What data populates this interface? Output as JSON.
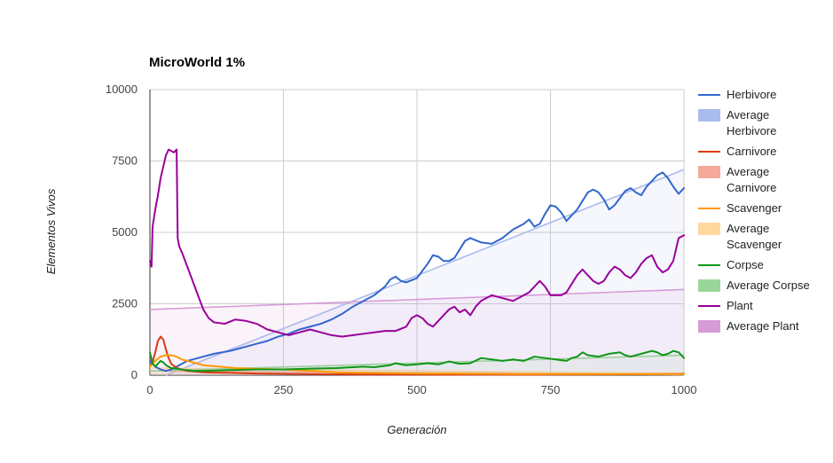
{
  "chart_data": {
    "type": "line",
    "title": "MicroWorld 1%",
    "xlabel": "Generación",
    "ylabel": "Elementos Vivos",
    "xlim": [
      0,
      1000
    ],
    "ylim": [
      0,
      10000
    ],
    "x_ticks": [
      0,
      250,
      500,
      750,
      1000
    ],
    "y_ticks": [
      0,
      2500,
      5000,
      7500,
      10000
    ],
    "x_tick_labels": [
      "0",
      "250",
      "500",
      "750",
      "1000"
    ],
    "y_tick_labels": [
      "0",
      "2500",
      "5000",
      "7500",
      "10000"
    ],
    "grid": true,
    "legend_position": "right",
    "series": [
      {
        "name": "Herbivore",
        "legend_label": [
          "Herbivore"
        ],
        "style": "line",
        "color": "#3366cc",
        "points": [
          [
            0,
            500
          ],
          [
            10,
            300
          ],
          [
            20,
            200
          ],
          [
            30,
            150
          ],
          [
            40,
            200
          ],
          [
            50,
            300
          ],
          [
            60,
            400
          ],
          [
            70,
            500
          ],
          [
            80,
            550
          ],
          [
            100,
            650
          ],
          [
            120,
            750
          ],
          [
            150,
            850
          ],
          [
            180,
            1000
          ],
          [
            200,
            1100
          ],
          [
            220,
            1200
          ],
          [
            240,
            1350
          ],
          [
            260,
            1450
          ],
          [
            280,
            1600
          ],
          [
            300,
            1700
          ],
          [
            320,
            1800
          ],
          [
            340,
            1950
          ],
          [
            360,
            2150
          ],
          [
            380,
            2400
          ],
          [
            400,
            2600
          ],
          [
            420,
            2800
          ],
          [
            440,
            3100
          ],
          [
            450,
            3350
          ],
          [
            460,
            3450
          ],
          [
            470,
            3300
          ],
          [
            480,
            3250
          ],
          [
            500,
            3400
          ],
          [
            520,
            3900
          ],
          [
            530,
            4200
          ],
          [
            540,
            4150
          ],
          [
            550,
            4000
          ],
          [
            560,
            4000
          ],
          [
            570,
            4100
          ],
          [
            580,
            4400
          ],
          [
            590,
            4700
          ],
          [
            600,
            4800
          ],
          [
            620,
            4650
          ],
          [
            640,
            4600
          ],
          [
            660,
            4800
          ],
          [
            680,
            5100
          ],
          [
            700,
            5300
          ],
          [
            710,
            5450
          ],
          [
            720,
            5200
          ],
          [
            730,
            5300
          ],
          [
            740,
            5650
          ],
          [
            750,
            5950
          ],
          [
            760,
            5900
          ],
          [
            770,
            5700
          ],
          [
            780,
            5400
          ],
          [
            800,
            5800
          ],
          [
            810,
            6100
          ],
          [
            820,
            6400
          ],
          [
            830,
            6500
          ],
          [
            840,
            6400
          ],
          [
            850,
            6150
          ],
          [
            860,
            5800
          ],
          [
            870,
            5950
          ],
          [
            880,
            6200
          ],
          [
            890,
            6450
          ],
          [
            900,
            6550
          ],
          [
            910,
            6400
          ],
          [
            920,
            6300
          ],
          [
            930,
            6600
          ],
          [
            940,
            6800
          ],
          [
            950,
            7000
          ],
          [
            960,
            7100
          ],
          [
            970,
            6900
          ],
          [
            980,
            6600
          ],
          [
            990,
            6350
          ],
          [
            1000,
            6550
          ]
        ]
      },
      {
        "name": "Average Herbivore",
        "legend_label": [
          "Average",
          "Herbivore"
        ],
        "style": "area",
        "color": "#aabbee",
        "points": [
          [
            30,
            0
          ],
          [
            1000,
            7200
          ]
        ]
      },
      {
        "name": "Carnivore",
        "legend_label": [
          "Carnivore"
        ],
        "style": "line",
        "color": "#dc3912",
        "points": [
          [
            0,
            300
          ],
          [
            5,
            450
          ],
          [
            10,
            800
          ],
          [
            15,
            1200
          ],
          [
            20,
            1350
          ],
          [
            25,
            1250
          ],
          [
            30,
            900
          ],
          [
            35,
            600
          ],
          [
            40,
            400
          ],
          [
            50,
            250
          ],
          [
            70,
            150
          ],
          [
            100,
            100
          ],
          [
            150,
            80
          ],
          [
            200,
            60
          ],
          [
            300,
            40
          ],
          [
            400,
            25
          ],
          [
            500,
            20
          ],
          [
            600,
            20
          ],
          [
            700,
            20
          ],
          [
            800,
            25
          ],
          [
            900,
            30
          ],
          [
            1000,
            50
          ]
        ]
      },
      {
        "name": "Average Carnivore",
        "legend_label": [
          "Average",
          "Carnivore"
        ],
        "style": "area",
        "color": "#f4a99a",
        "points": [
          [
            0,
            150
          ],
          [
            1000,
            20
          ]
        ]
      },
      {
        "name": "Scavenger",
        "legend_label": [
          "Scavenger"
        ],
        "style": "line",
        "color": "#ff9900",
        "points": [
          [
            0,
            300
          ],
          [
            10,
            500
          ],
          [
            20,
            650
          ],
          [
            30,
            700
          ],
          [
            40,
            700
          ],
          [
            50,
            650
          ],
          [
            60,
            550
          ],
          [
            80,
            450
          ],
          [
            100,
            350
          ],
          [
            130,
            300
          ],
          [
            160,
            250
          ],
          [
            200,
            220
          ],
          [
            250,
            200
          ],
          [
            300,
            150
          ],
          [
            350,
            100
          ],
          [
            400,
            80
          ],
          [
            500,
            60
          ],
          [
            600,
            50
          ],
          [
            700,
            40
          ],
          [
            800,
            40
          ],
          [
            900,
            40
          ],
          [
            1000,
            40
          ]
        ]
      },
      {
        "name": "Average Scavenger",
        "legend_label": [
          "Average",
          "Scavenger"
        ],
        "style": "area",
        "color": "#ffd8a0",
        "points": [
          [
            0,
            250
          ],
          [
            1000,
            50
          ]
        ]
      },
      {
        "name": "Corpse",
        "legend_label": [
          "Corpse"
        ],
        "style": "line",
        "color": "#109618",
        "points": [
          [
            0,
            800
          ],
          [
            5,
            400
          ],
          [
            10,
            300
          ],
          [
            15,
            400
          ],
          [
            20,
            500
          ],
          [
            25,
            450
          ],
          [
            30,
            350
          ],
          [
            40,
            250
          ],
          [
            60,
            200
          ],
          [
            80,
            150
          ],
          [
            100,
            150
          ],
          [
            150,
            180
          ],
          [
            200,
            200
          ],
          [
            250,
            200
          ],
          [
            300,
            230
          ],
          [
            350,
            250
          ],
          [
            400,
            300
          ],
          [
            420,
            280
          ],
          [
            450,
            350
          ],
          [
            460,
            420
          ],
          [
            470,
            380
          ],
          [
            480,
            350
          ],
          [
            500,
            380
          ],
          [
            520,
            420
          ],
          [
            540,
            380
          ],
          [
            560,
            480
          ],
          [
            580,
            400
          ],
          [
            600,
            420
          ],
          [
            620,
            600
          ],
          [
            640,
            550
          ],
          [
            660,
            500
          ],
          [
            680,
            550
          ],
          [
            700,
            500
          ],
          [
            720,
            650
          ],
          [
            740,
            600
          ],
          [
            760,
            550
          ],
          [
            780,
            500
          ],
          [
            790,
            600
          ],
          [
            800,
            650
          ],
          [
            810,
            800
          ],
          [
            820,
            700
          ],
          [
            840,
            650
          ],
          [
            860,
            750
          ],
          [
            880,
            800
          ],
          [
            890,
            700
          ],
          [
            900,
            650
          ],
          [
            920,
            750
          ],
          [
            940,
            850
          ],
          [
            950,
            800
          ],
          [
            960,
            700
          ],
          [
            970,
            750
          ],
          [
            980,
            850
          ],
          [
            990,
            800
          ],
          [
            1000,
            600
          ]
        ]
      },
      {
        "name": "Average Corpse",
        "legend_label": [
          "Average Corpse"
        ],
        "style": "area",
        "color": "#99d699",
        "points": [
          [
            0,
            150
          ],
          [
            1000,
            700
          ]
        ]
      },
      {
        "name": "Plant",
        "legend_label": [
          "Plant"
        ],
        "style": "line",
        "color": "#990099",
        "points": [
          [
            0,
            4000
          ],
          [
            3,
            3800
          ],
          [
            5,
            5200
          ],
          [
            10,
            5800
          ],
          [
            15,
            6300
          ],
          [
            20,
            6900
          ],
          [
            25,
            7300
          ],
          [
            30,
            7700
          ],
          [
            35,
            7900
          ],
          [
            40,
            7850
          ],
          [
            45,
            7800
          ],
          [
            50,
            7900
          ],
          [
            52,
            4800
          ],
          [
            55,
            4500
          ],
          [
            60,
            4300
          ],
          [
            70,
            3800
          ],
          [
            80,
            3300
          ],
          [
            90,
            2800
          ],
          [
            100,
            2300
          ],
          [
            110,
            2000
          ],
          [
            120,
            1850
          ],
          [
            140,
            1800
          ],
          [
            160,
            1950
          ],
          [
            180,
            1900
          ],
          [
            200,
            1800
          ],
          [
            220,
            1600
          ],
          [
            240,
            1500
          ],
          [
            260,
            1400
          ],
          [
            280,
            1500
          ],
          [
            300,
            1600
          ],
          [
            320,
            1500
          ],
          [
            340,
            1400
          ],
          [
            360,
            1350
          ],
          [
            380,
            1400
          ],
          [
            400,
            1450
          ],
          [
            420,
            1500
          ],
          [
            440,
            1550
          ],
          [
            460,
            1550
          ],
          [
            480,
            1700
          ],
          [
            490,
            2000
          ],
          [
            500,
            2100
          ],
          [
            510,
            2000
          ],
          [
            520,
            1800
          ],
          [
            530,
            1700
          ],
          [
            540,
            1900
          ],
          [
            560,
            2300
          ],
          [
            570,
            2400
          ],
          [
            580,
            2200
          ],
          [
            590,
            2300
          ],
          [
            600,
            2100
          ],
          [
            610,
            2400
          ],
          [
            620,
            2600
          ],
          [
            640,
            2800
          ],
          [
            660,
            2700
          ],
          [
            680,
            2600
          ],
          [
            700,
            2800
          ],
          [
            710,
            2900
          ],
          [
            720,
            3100
          ],
          [
            730,
            3300
          ],
          [
            740,
            3100
          ],
          [
            750,
            2800
          ],
          [
            770,
            2800
          ],
          [
            780,
            2900
          ],
          [
            790,
            3200
          ],
          [
            800,
            3500
          ],
          [
            810,
            3700
          ],
          [
            820,
            3500
          ],
          [
            830,
            3300
          ],
          [
            840,
            3200
          ],
          [
            850,
            3300
          ],
          [
            860,
            3600
          ],
          [
            870,
            3800
          ],
          [
            880,
            3700
          ],
          [
            890,
            3500
          ],
          [
            900,
            3400
          ],
          [
            910,
            3600
          ],
          [
            920,
            3900
          ],
          [
            930,
            4100
          ],
          [
            940,
            4200
          ],
          [
            950,
            3800
          ],
          [
            960,
            3600
          ],
          [
            970,
            3700
          ],
          [
            980,
            4000
          ],
          [
            990,
            4800
          ],
          [
            1000,
            4900
          ]
        ]
      },
      {
        "name": "Average Plant",
        "legend_label": [
          "Average Plant"
        ],
        "style": "area",
        "color": "#d79bd7",
        "points": [
          [
            0,
            2300
          ],
          [
            1000,
            3000
          ]
        ]
      }
    ]
  }
}
